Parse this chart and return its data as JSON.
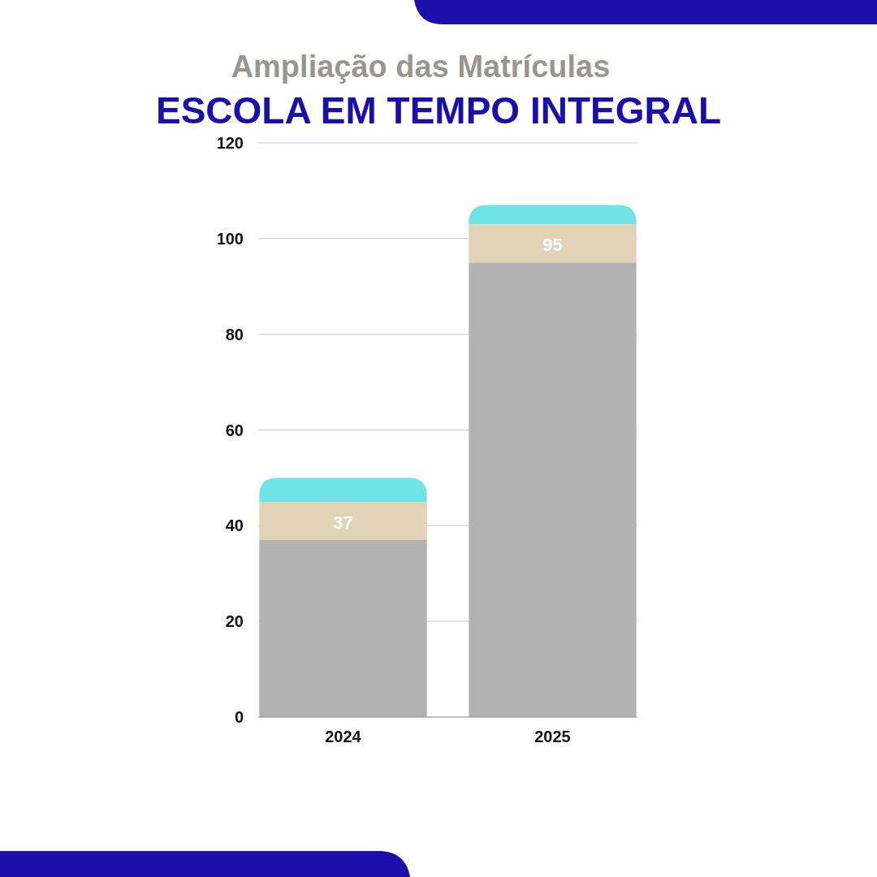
{
  "chart_data": {
    "type": "bar",
    "title": "Ampliação das Matrículas",
    "subtitle": "ESCOLA EM TEMPO INTEGRAL",
    "categories": [
      "2024",
      "2025"
    ],
    "stacked": true,
    "series": [
      {
        "color": "#b3b3b3",
        "values": [
          37,
          95
        ],
        "value_labels": [
          "37",
          "95"
        ]
      },
      {
        "color": "#e0d3b6",
        "values": [
          8,
          8
        ]
      },
      {
        "color": "#6fe3e5",
        "values": [
          5,
          4
        ]
      }
    ],
    "ylim": [
      0,
      120
    ],
    "yticks": [
      0,
      20,
      40,
      60,
      80,
      100,
      120
    ],
    "grid": "y"
  }
}
